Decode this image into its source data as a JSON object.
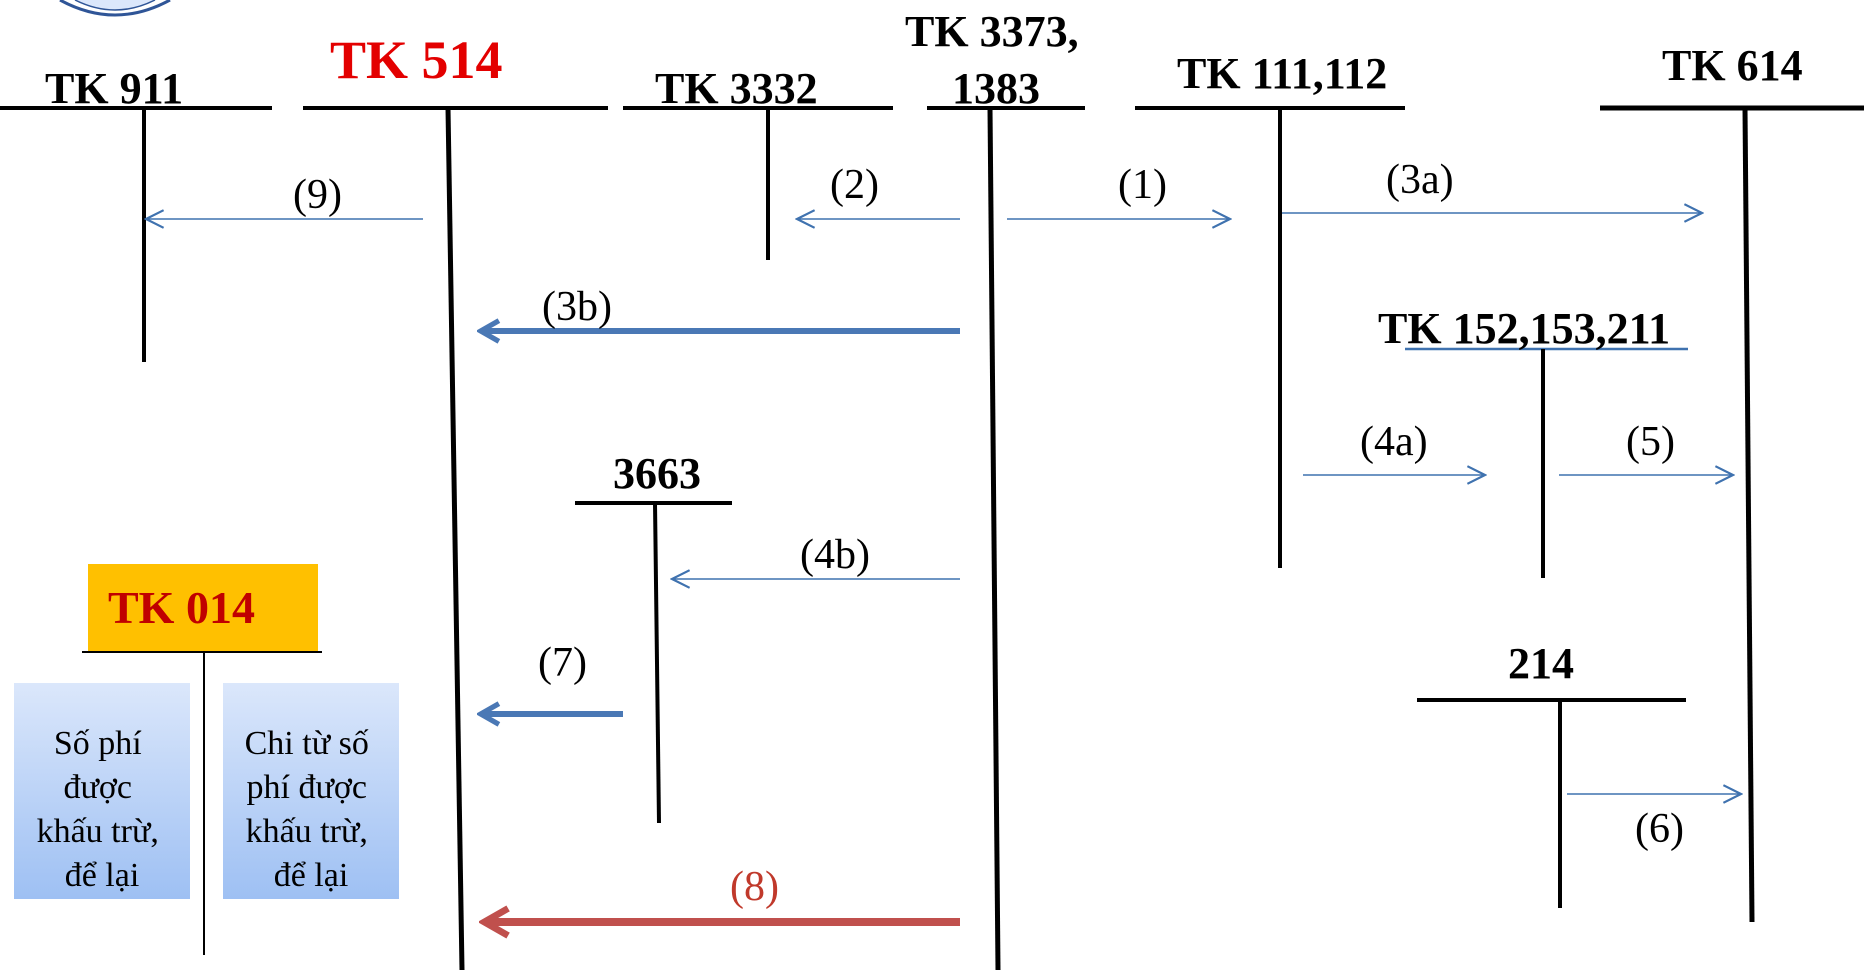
{
  "accounts": {
    "tk911": "TK 911",
    "tk514": "TK 514",
    "tk3332": "TK 3332",
    "tk3373_line1": "TK 3373,",
    "tk3373_line2": "1383",
    "tk111": "TK 111,112",
    "tk614": "TK 614",
    "tk152": "TK 152,153,211",
    "tk3663": "3663",
    "tk214": "214",
    "tk014": "TK 014"
  },
  "steps": {
    "s1": "(1)",
    "s2": "(2)",
    "s3a": "(3a)",
    "s3b": "(3b)",
    "s4a": "(4a)",
    "s4b": "(4b)",
    "s5": "(5)",
    "s6": "(6)",
    "s7": "(7)",
    "s8": "(8)",
    "s9": "(9)"
  },
  "tk014_boxes": {
    "debit": [
      "Số phí",
      "được",
      "khấu trừ,",
      "để lại"
    ],
    "credit": [
      "Chi từ số",
      "phí được",
      "khấu trừ,",
      "để lại"
    ]
  },
  "colors": {
    "thin_arrow": "#3f72af",
    "thick_arrow": "#4a78b5",
    "red_arrow": "#c0504d",
    "red_title": "#e30000",
    "tk014_fill": "#ffc000",
    "tk014_text": "#c00000",
    "box_gradient_top": "#dbe7fb",
    "box_gradient_bottom": "#9ec0f3"
  }
}
